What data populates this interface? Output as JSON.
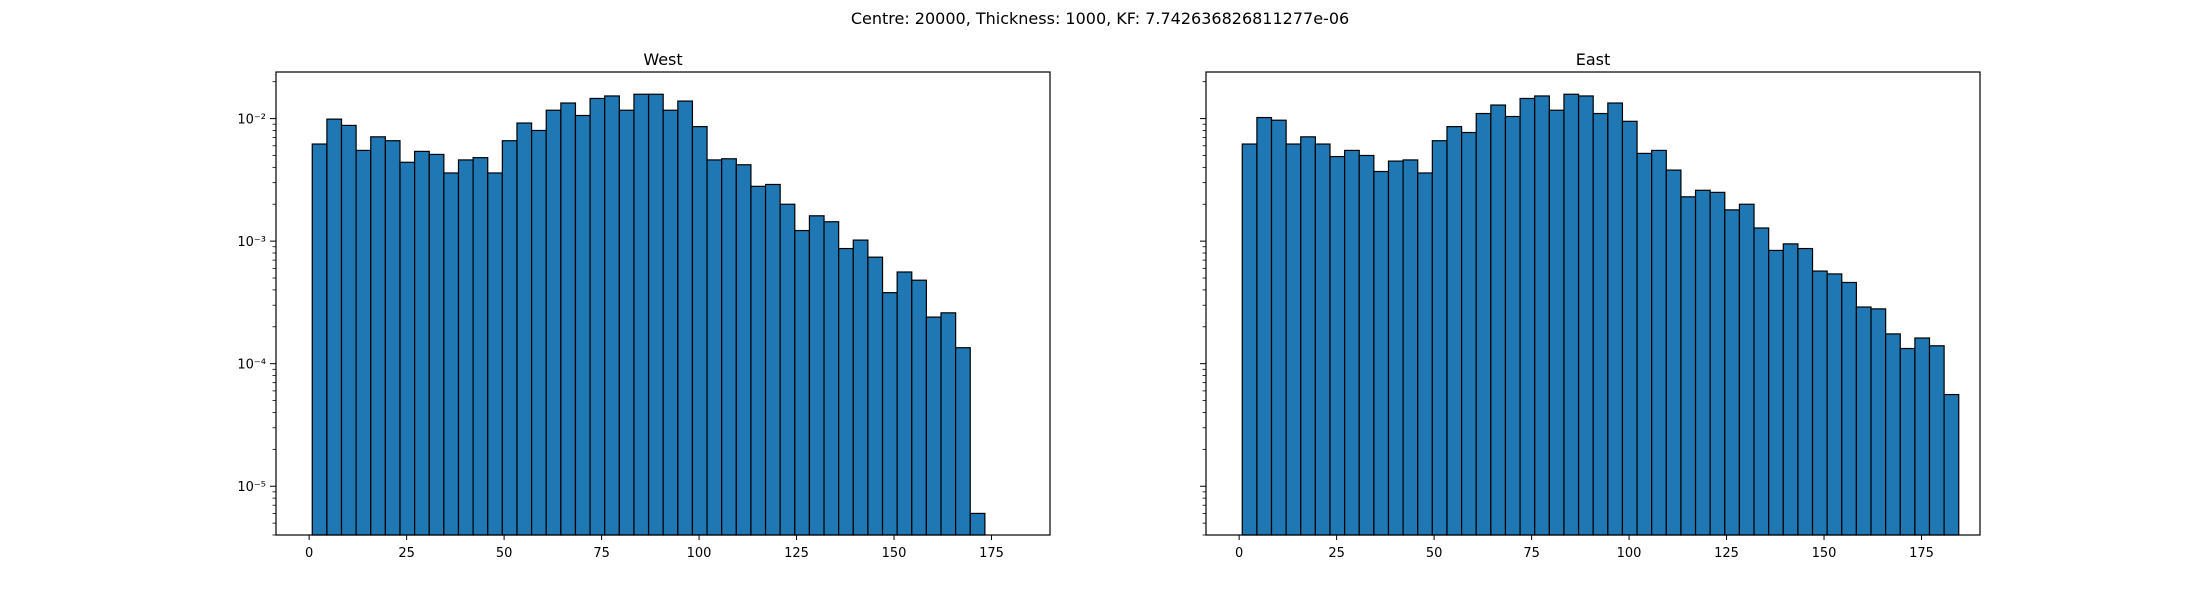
{
  "figure": {
    "suptitle": "Centre: 20000, Thickness: 1000, KF: 7.742636826811277e-06"
  },
  "chart_data": [
    {
      "type": "bar",
      "title": "West",
      "xlabel": "",
      "ylabel": "",
      "yscale": "log",
      "xlim": [
        -8.5,
        190
      ],
      "ylim": [
        4e-06,
        0.024
      ],
      "x_ticks": [
        0,
        25,
        50,
        75,
        100,
        125,
        150,
        175
      ],
      "x_tick_labels": [
        "0",
        "25",
        "50",
        "75",
        "100",
        "125",
        "150",
        "175"
      ],
      "y_ticks": [
        1e-05,
        0.0001,
        0.001,
        0.01
      ],
      "y_tick_labels": [
        "10⁻⁵",
        "10⁻⁴",
        "10⁻³",
        "10⁻²"
      ],
      "show_y_tick_labels": true,
      "grid": false,
      "bin_start": 0.8,
      "bin_width": 3.75,
      "bar_color": "#1f77b4",
      "edge_color": "#000000",
      "values": [
        0.0062,
        0.0099,
        0.0088,
        0.0055,
        0.0071,
        0.0066,
        0.0044,
        0.0054,
        0.0051,
        0.0036,
        0.0046,
        0.0048,
        0.0036,
        0.0066,
        0.0092,
        0.008,
        0.0117,
        0.0134,
        0.0106,
        0.0146,
        0.0153,
        0.0117,
        0.0158,
        0.0158,
        0.0117,
        0.0139,
        0.0086,
        0.0046,
        0.0047,
        0.0042,
        0.0028,
        0.0029,
        0.002,
        0.00122,
        0.00161,
        0.00144,
        0.00087,
        0.00102,
        0.00074,
        0.00038,
        0.00056,
        0.00048,
        0.00024,
        0.00026,
        0.000135,
        6e-06
      ]
    },
    {
      "type": "bar",
      "title": "East",
      "xlabel": "",
      "ylabel": "",
      "yscale": "log",
      "xlim": [
        -8.5,
        190
      ],
      "ylim": [
        4e-06,
        0.024
      ],
      "x_ticks": [
        0,
        25,
        50,
        75,
        100,
        125,
        150,
        175
      ],
      "x_tick_labels": [
        "0",
        "25",
        "50",
        "75",
        "100",
        "125",
        "150",
        "175"
      ],
      "y_ticks": [
        1e-05,
        0.0001,
        0.001,
        0.01
      ],
      "y_tick_labels": [],
      "show_y_tick_labels": false,
      "grid": false,
      "bin_start": 0.8,
      "bin_width": 3.75,
      "bar_color": "#1f77b4",
      "edge_color": "#000000",
      "values": [
        0.0062,
        0.0102,
        0.0097,
        0.0062,
        0.0071,
        0.0062,
        0.0049,
        0.0055,
        0.005,
        0.0037,
        0.0045,
        0.0046,
        0.0036,
        0.0066,
        0.0086,
        0.0077,
        0.011,
        0.0129,
        0.0104,
        0.0146,
        0.0153,
        0.0117,
        0.0158,
        0.0153,
        0.011,
        0.0134,
        0.0095,
        0.0052,
        0.0055,
        0.0038,
        0.0023,
        0.0026,
        0.0025,
        0.0018,
        0.002,
        0.00128,
        0.00084,
        0.00095,
        0.00087,
        0.00057,
        0.00054,
        0.00046,
        0.00029,
        0.00028,
        0.000175,
        0.000133,
        0.000162,
        0.00014,
        5.6e-05
      ]
    }
  ]
}
